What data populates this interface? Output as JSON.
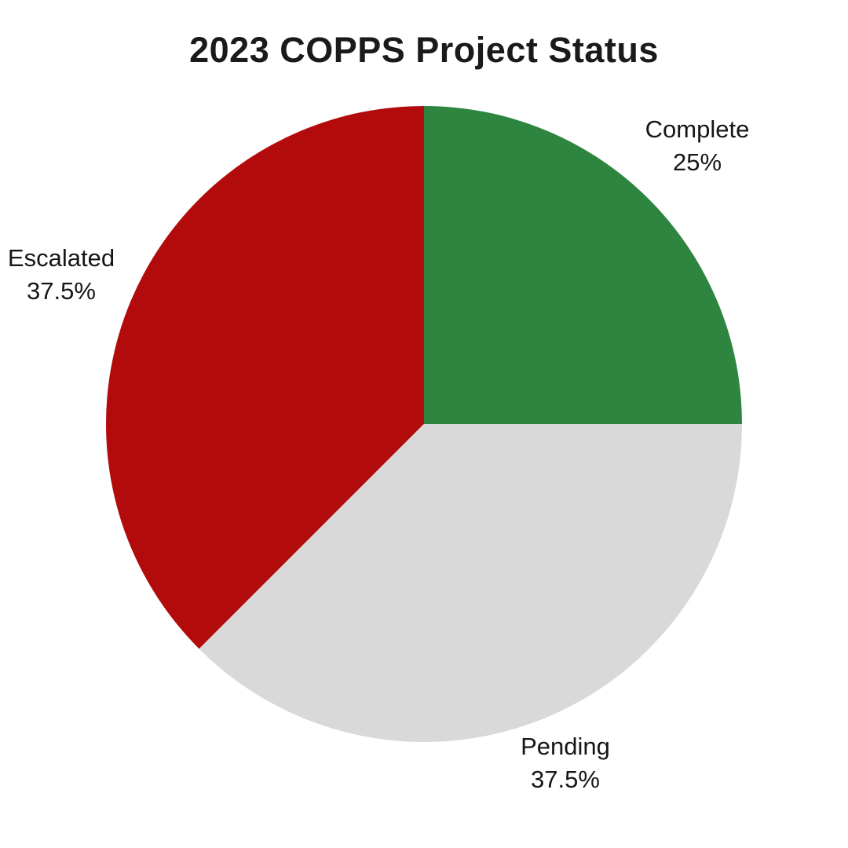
{
  "chart_data": {
    "type": "pie",
    "title": "2023 COPPS Project Status",
    "start_angle_deg": 0,
    "direction": "clockwise",
    "legend": "none",
    "background_color": "#ffffff",
    "title_color": "#1a1a1a",
    "label_color": "#161616",
    "slices": [
      {
        "label": "Complete",
        "value": 25,
        "percent_label": "25%",
        "color": "#2e8540"
      },
      {
        "label": "Pending",
        "value": 37.5,
        "percent_label": "37.5%",
        "color": "#d9d9d9"
      },
      {
        "label": "Escalated",
        "value": 37.5,
        "percent_label": "37.5%",
        "color": "#b30b0b"
      }
    ]
  }
}
